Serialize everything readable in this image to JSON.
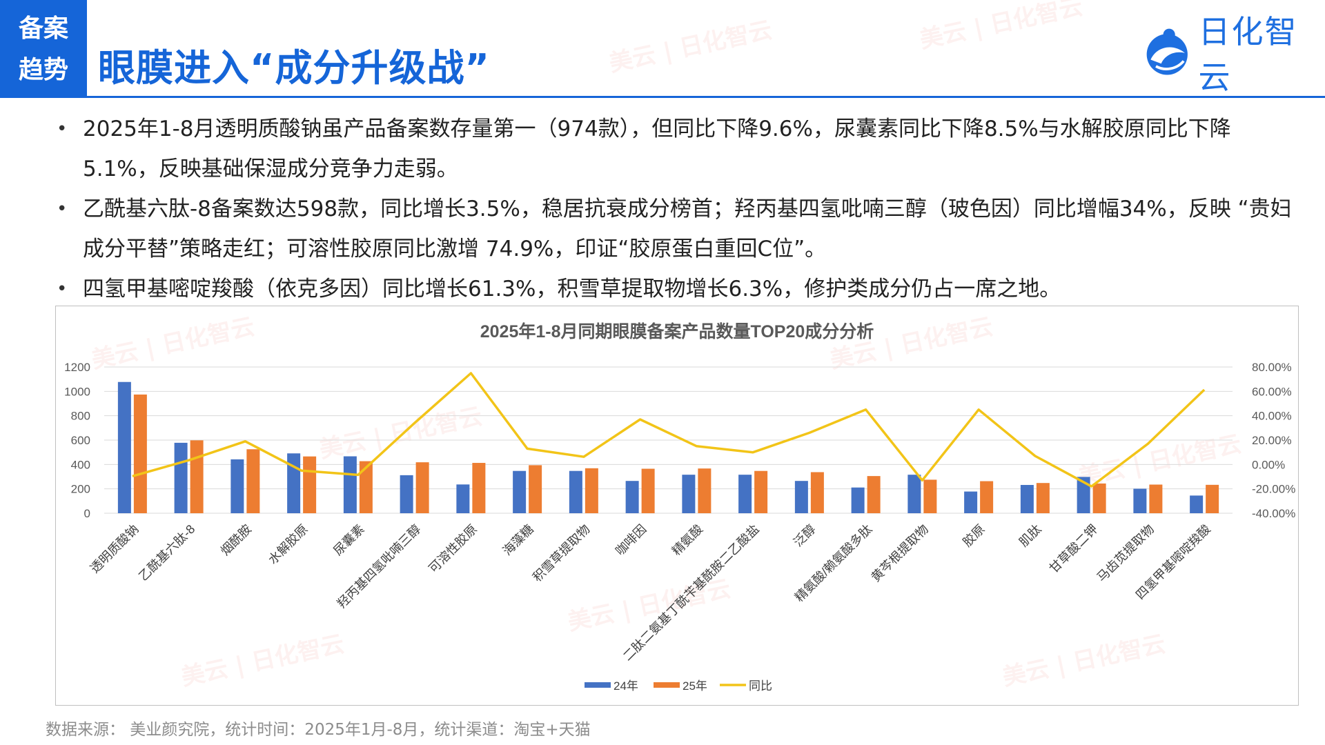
{
  "header": {
    "tag_line1": "备案",
    "tag_line2": "趋势",
    "title": "眼膜进入“成分升级战”",
    "logo_text": "日化智云"
  },
  "bullets": [
    "2025年1-8月透明质酸钠虽产品备案数存量第一（974款），但同比下降9.6%，尿囊素同比下降8.5%与水解胶原同比下降5.1%，反映基础保湿成分竞争力走弱。",
    "乙酰基六肽-8备案数达598款，同比增长3.5%，稳居抗衰成分榜首；羟丙基四氢吡喃三醇（玻色因）同比增幅34%，反映 “贵妇成分平替”策略走红；可溶性胶原同比激增 74.9%，印证“胶原蛋白重回C位”。",
    "四氢甲基嘧啶羧酸（依克多因）同比增长61.3%，积雪草提取物增长6.3%，修护类成分仍占一席之地。"
  ],
  "watermark": "美云 | 日化智云",
  "source": "数据来源： 美业颜究院，统计时间：2025年1月-8月，统计渠道：淘宝+天猫",
  "colors": {
    "brand": "#1565D8",
    "series24": "#4472C4",
    "series25": "#ED7D31",
    "yoy": "#F2C418"
  },
  "chart_data": {
    "type": "bar",
    "title": "2025年1-8月同期眼膜备案产品数量TOP20成分分析",
    "categories": [
      "透明质酸钠",
      "乙酰基六肽-8",
      "烟酰胺",
      "水解胶原",
      "尿囊素",
      "羟丙基四氢吡喃三醇",
      "可溶性胶原",
      "海藻糖",
      "积雪草提取物",
      "咖啡因",
      "精氨酸",
      "二肽二氨基丁酰苄基酰胺二乙酸盐",
      "泛醇",
      "精氨酸/赖氨酸多肽",
      "黄芩根提取物",
      "胶原",
      "肌肽",
      "甘草酸二钾",
      "马齿苋提取物",
      "四氢甲基嘧啶羧酸"
    ],
    "series": [
      {
        "name": "24年",
        "type": "bar",
        "axis": "left",
        "values": [
          1077,
          578,
          442,
          491,
          467,
          312,
          236,
          347,
          347,
          265,
          316,
          316,
          265,
          211,
          316,
          178,
          232,
          298,
          201,
          145
        ]
      },
      {
        "name": "25年",
        "type": "bar",
        "axis": "left",
        "values": [
          974,
          598,
          525,
          466,
          427,
          418,
          413,
          394,
          369,
          365,
          367,
          347,
          337,
          305,
          275,
          263,
          248,
          244,
          235,
          233
        ]
      },
      {
        "name": "同比",
        "type": "line",
        "axis": "right",
        "values": [
          -0.096,
          0.035,
          0.19,
          -0.051,
          -0.085,
          0.34,
          0.749,
          0.13,
          0.063,
          0.37,
          0.15,
          0.1,
          0.26,
          0.45,
          -0.13,
          0.45,
          0.07,
          -0.18,
          0.17,
          0.613
        ]
      }
    ],
    "y_left": {
      "min": 0,
      "max": 1200,
      "step": 200,
      "ticks": [
        "0",
        "200",
        "400",
        "600",
        "800",
        "1000",
        "1200"
      ]
    },
    "y_right": {
      "min": -0.4,
      "max": 0.8,
      "step": 0.2,
      "ticks": [
        "-40.00%",
        "-20.00%",
        "0.00%",
        "20.00%",
        "40.00%",
        "60.00%",
        "80.00%"
      ]
    },
    "legend": [
      "24年",
      "25年",
      "同比"
    ],
    "legend_position": "bottom",
    "grid": true
  }
}
